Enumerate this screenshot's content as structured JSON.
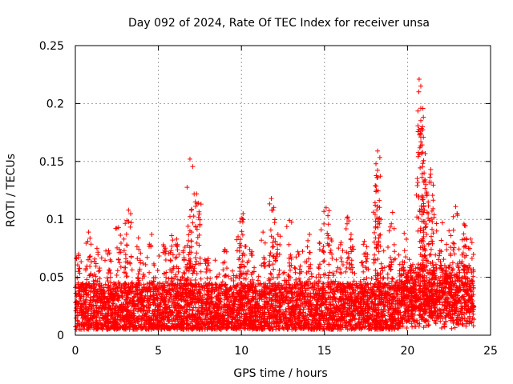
{
  "chart_data": {
    "type": "scatter",
    "title": "Day 092 of 2024, Rate Of TEC Index for receiver unsa",
    "xlabel": "GPS time / hours",
    "ylabel": "ROTI / TECUs",
    "xlim": [
      0,
      25
    ],
    "ylim": [
      0,
      0.25
    ],
    "x_ticks": [
      0,
      5,
      10,
      15,
      20,
      25
    ],
    "x_tick_labels": [
      "0",
      "5",
      "10",
      "15",
      "20",
      "25"
    ],
    "y_ticks": [
      0,
      0.05,
      0.1,
      0.15,
      0.2,
      0.25
    ],
    "y_tick_labels": [
      "0",
      "0.05",
      "0.1",
      "0.15",
      "0.2",
      "0.25"
    ],
    "grid": true,
    "marker": "+",
    "color": "#ff0000",
    "data_range_x": [
      0,
      24
    ],
    "baseline_band": [
      0.005,
      0.045
    ],
    "series": [
      {
        "name": "ROTI",
        "description_points": "dense scatter, approximately 0.01-0.04 TECU baseline throughout, with spikes",
        "spikes": [
          {
            "x": 0.2,
            "y": 0.07
          },
          {
            "x": 0.8,
            "y": 0.089
          },
          {
            "x": 1.3,
            "y": 0.075
          },
          {
            "x": 2.0,
            "y": 0.073
          },
          {
            "x": 2.6,
            "y": 0.093
          },
          {
            "x": 3.1,
            "y": 0.099
          },
          {
            "x": 3.2,
            "y": 0.108
          },
          {
            "x": 3.8,
            "y": 0.084
          },
          {
            "x": 4.6,
            "y": 0.087
          },
          {
            "x": 5.3,
            "y": 0.078
          },
          {
            "x": 5.8,
            "y": 0.086
          },
          {
            "x": 6.1,
            "y": 0.083
          },
          {
            "x": 6.6,
            "y": 0.076
          },
          {
            "x": 6.9,
            "y": 0.152
          },
          {
            "x": 6.9,
            "y": 0.09
          },
          {
            "x": 7.0,
            "y": 0.089
          },
          {
            "x": 7.3,
            "y": 0.122
          },
          {
            "x": 7.4,
            "y": 0.114
          },
          {
            "x": 8.0,
            "y": 0.066
          },
          {
            "x": 9.0,
            "y": 0.074
          },
          {
            "x": 9.8,
            "y": 0.085
          },
          {
            "x": 10.1,
            "y": 0.105
          },
          {
            "x": 10.0,
            "y": 0.101
          },
          {
            "x": 10.5,
            "y": 0.074
          },
          {
            "x": 11.3,
            "y": 0.089
          },
          {
            "x": 11.8,
            "y": 0.118
          },
          {
            "x": 11.9,
            "y": 0.108
          },
          {
            "x": 12.2,
            "y": 0.087
          },
          {
            "x": 12.9,
            "y": 0.099
          },
          {
            "x": 13.4,
            "y": 0.072
          },
          {
            "x": 14.1,
            "y": 0.087
          },
          {
            "x": 14.8,
            "y": 0.091
          },
          {
            "x": 15.1,
            "y": 0.11
          },
          {
            "x": 15.4,
            "y": 0.083
          },
          {
            "x": 16.0,
            "y": 0.08
          },
          {
            "x": 16.4,
            "y": 0.102
          },
          {
            "x": 16.6,
            "y": 0.087
          },
          {
            "x": 17.4,
            "y": 0.081
          },
          {
            "x": 18.2,
            "y": 0.159
          },
          {
            "x": 18.1,
            "y": 0.148
          },
          {
            "x": 18.2,
            "y": 0.136
          },
          {
            "x": 18.1,
            "y": 0.124
          },
          {
            "x": 18.4,
            "y": 0.1
          },
          {
            "x": 18.9,
            "y": 0.09
          },
          {
            "x": 19.1,
            "y": 0.106
          },
          {
            "x": 19.8,
            "y": 0.088
          },
          {
            "x": 20.7,
            "y": 0.221
          },
          {
            "x": 20.8,
            "y": 0.215
          },
          {
            "x": 20.8,
            "y": 0.196
          },
          {
            "x": 20.9,
            "y": 0.18
          },
          {
            "x": 20.8,
            "y": 0.171
          },
          {
            "x": 20.9,
            "y": 0.158
          },
          {
            "x": 21.0,
            "y": 0.14
          },
          {
            "x": 21.1,
            "y": 0.13
          },
          {
            "x": 21.4,
            "y": 0.143
          },
          {
            "x": 21.3,
            "y": 0.132
          },
          {
            "x": 21.6,
            "y": 0.104
          },
          {
            "x": 22.1,
            "y": 0.097
          },
          {
            "x": 22.5,
            "y": 0.09
          },
          {
            "x": 22.9,
            "y": 0.111
          },
          {
            "x": 23.4,
            "y": 0.096
          },
          {
            "x": 23.8,
            "y": 0.083
          }
        ]
      }
    ]
  }
}
